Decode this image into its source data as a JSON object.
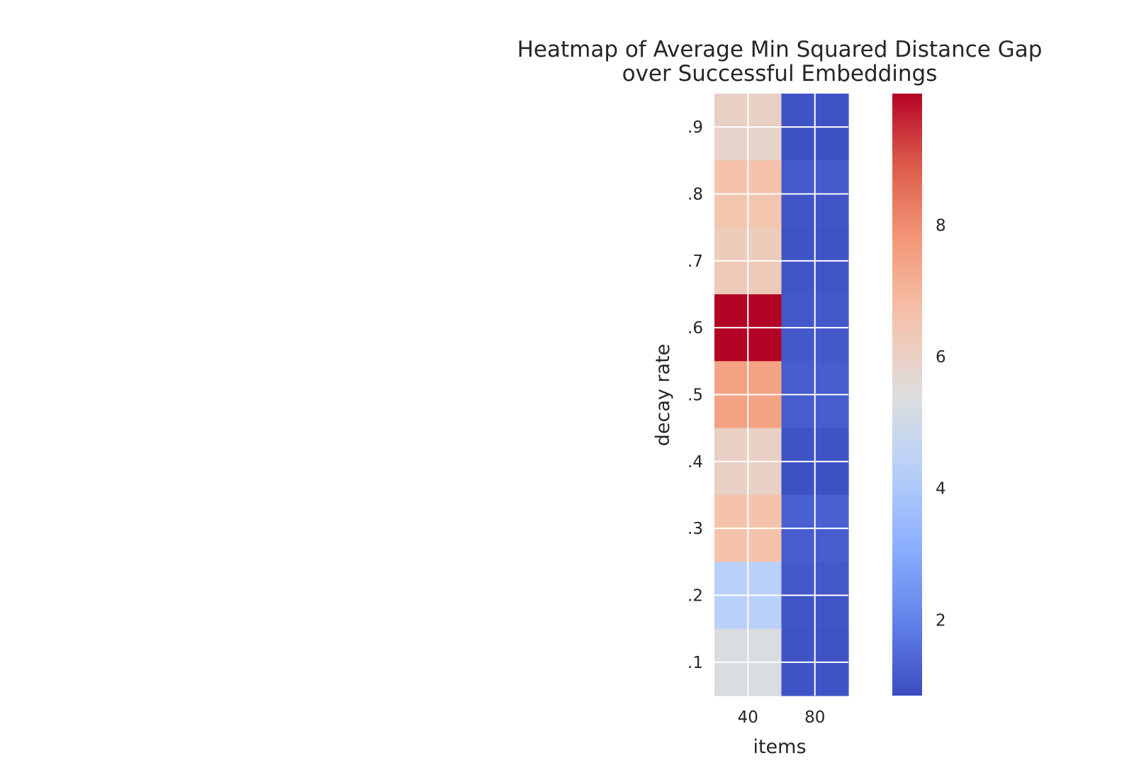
{
  "chart_data": {
    "type": "heatmap",
    "title_lines": [
      "Heatmap of Average Min Squared Distance Gap",
      "over Successful Embeddings"
    ],
    "xlabel": "items",
    "ylabel": "decay rate",
    "x_tick_labels": [
      "40",
      "80"
    ],
    "y_tick_labels": [
      ".1",
      ".2",
      ".3",
      ".4",
      ".5",
      ".6",
      ".7",
      ".8",
      ".9"
    ],
    "colormap": "coolwarm",
    "colorbar": {
      "min": 0.85,
      "max": 10.0,
      "ticks": [
        2,
        4,
        6,
        8
      ]
    },
    "grid_lines": "white",
    "rows_top_to_bottom": [
      [
        6.0,
        6.0,
        1.0,
        1.0
      ],
      [
        5.9,
        5.9,
        0.95,
        0.95
      ],
      [
        6.6,
        6.6,
        1.15,
        1.15
      ],
      [
        6.5,
        6.5,
        1.05,
        1.05
      ],
      [
        6.2,
        6.2,
        1.0,
        1.0
      ],
      [
        6.3,
        6.3,
        1.05,
        1.05
      ],
      [
        10.0,
        10.0,
        1.1,
        1.1
      ],
      [
        10.0,
        10.0,
        1.1,
        1.1
      ],
      [
        7.5,
        7.5,
        1.2,
        1.2
      ],
      [
        7.5,
        7.5,
        1.2,
        1.2
      ],
      [
        6.0,
        6.0,
        1.0,
        1.0
      ],
      [
        6.0,
        6.0,
        0.95,
        0.95
      ],
      [
        6.6,
        6.6,
        1.3,
        1.3
      ],
      [
        6.6,
        6.6,
        1.2,
        1.2
      ],
      [
        4.3,
        4.3,
        1.1,
        1.1
      ],
      [
        4.3,
        4.3,
        1.05,
        1.05
      ],
      [
        5.3,
        5.3,
        1.0,
        1.0
      ],
      [
        5.3,
        5.3,
        1.0,
        1.0
      ]
    ]
  }
}
